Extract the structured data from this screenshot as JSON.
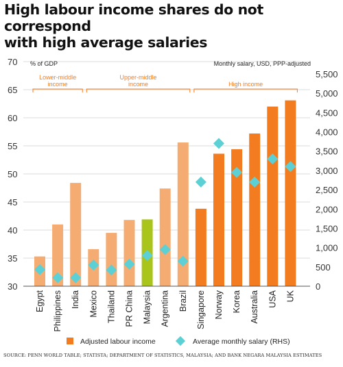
{
  "title_line1": "High labour income shares do not correspond",
  "title_line2": "with high average salaries",
  "source": "SOURCE: PENN WORLD TABLE; STATISTA; DEPARTMENT OF STATISTICS, MALAYSIA; AND BANK NEGARA MALAYSIA ESTIMATES",
  "colors": {
    "bar_light": "#f4ac72",
    "bar_dark": "#f47c20",
    "bar_malaysia": "#a9c51c",
    "diamond": "#5dd0d6",
    "bracket": "#f47c20",
    "grid": "#cfcfcf"
  },
  "chart_data": {
    "type": "bar",
    "categories": [
      "Egypt",
      "Philippines",
      "India",
      "Mexico",
      "Thailand",
      "PR China",
      "Malaysia",
      "Argentina",
      "Brazil",
      "Singapore",
      "Norway",
      "Korea",
      "Australia",
      "USA",
      "UK"
    ],
    "left_axis": {
      "label": "% of GDP",
      "ylim": [
        30,
        70
      ],
      "ticks": [
        30,
        35,
        40,
        45,
        50,
        55,
        60,
        65,
        70
      ]
    },
    "right_axis": {
      "label": "Monthly salary, USD, PPP-adjusted",
      "ylim": [
        0,
        5500
      ],
      "ticks": [
        0,
        500,
        1000,
        1500,
        2000,
        2500,
        3000,
        3500,
        4000,
        4500,
        5000,
        5500
      ],
      "tick_labels": [
        "0",
        "500",
        "1,000",
        "1,500",
        "2,000",
        "2,500",
        "3,000",
        "3,500",
        "4,000",
        "4,500",
        "5,000",
        "5,500"
      ]
    },
    "grid": true,
    "groups": [
      {
        "label_lines": [
          "Lower-middle",
          "income"
        ],
        "from": 0,
        "to": 2
      },
      {
        "label_lines": [
          "Upper-middle",
          "income"
        ],
        "from": 3,
        "to": 8
      },
      {
        "label_lines": [
          "High income"
        ],
        "from": 9,
        "to": 14
      }
    ],
    "series": [
      {
        "name": "Adjusted labour income",
        "type": "bar",
        "axis": "left",
        "values": [
          35.3,
          41.0,
          48.4,
          36.6,
          39.5,
          41.8,
          41.9,
          47.4,
          55.6,
          43.8,
          53.6,
          54.4,
          57.2,
          62.0,
          63.1
        ]
      },
      {
        "name": "Average monthly salary (RHS)",
        "type": "scatter",
        "marker": "diamond",
        "axis": "right",
        "values": [
          430,
          220,
          220,
          550,
          420,
          570,
          800,
          950,
          650,
          2700,
          3700,
          2950,
          2700,
          3300,
          3100
        ]
      }
    ],
    "legend_position": "bottom"
  }
}
